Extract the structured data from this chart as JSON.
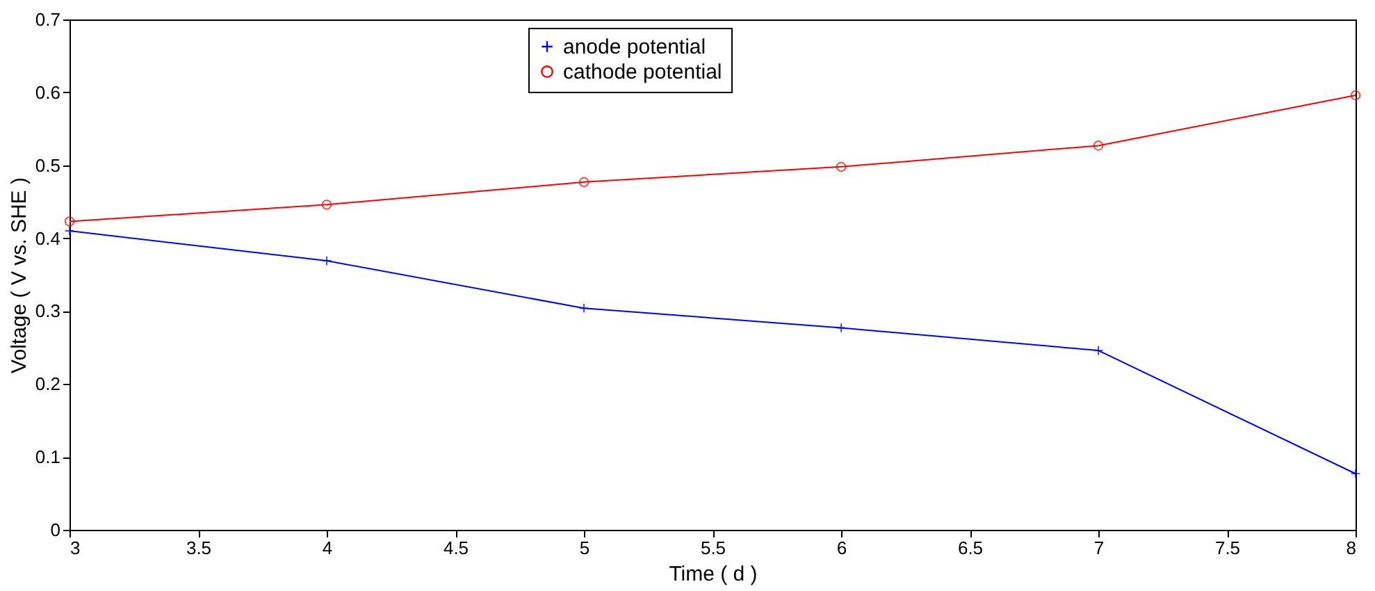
{
  "chart_data": {
    "type": "line",
    "xlabel": "Time ( d )",
    "ylabel": "Voltage ( V vs. SHE )",
    "x": [
      3,
      4,
      5,
      6,
      7,
      8
    ],
    "series": [
      {
        "name": "anode potential",
        "color": "#0000ff",
        "marker": "cross",
        "values": [
          0.41,
          0.369,
          0.304,
          0.277,
          0.246,
          0.077
        ]
      },
      {
        "name": "cathode potential",
        "color": "#ff0000",
        "marker": "circle",
        "values": [
          0.423,
          0.446,
          0.477,
          0.498,
          0.527,
          0.596
        ]
      }
    ],
    "xlim": [
      3,
      8
    ],
    "xticks": [
      3,
      3.5,
      4,
      4.5,
      5,
      5.5,
      6,
      6.5,
      7,
      7.5,
      8
    ],
    "ylim": [
      0,
      0.7
    ],
    "yticks": [
      0,
      0.1,
      0.2,
      0.3,
      0.4,
      0.5,
      0.6,
      0.7
    ],
    "grid": false,
    "legend": "top",
    "line_style": "solid"
  }
}
